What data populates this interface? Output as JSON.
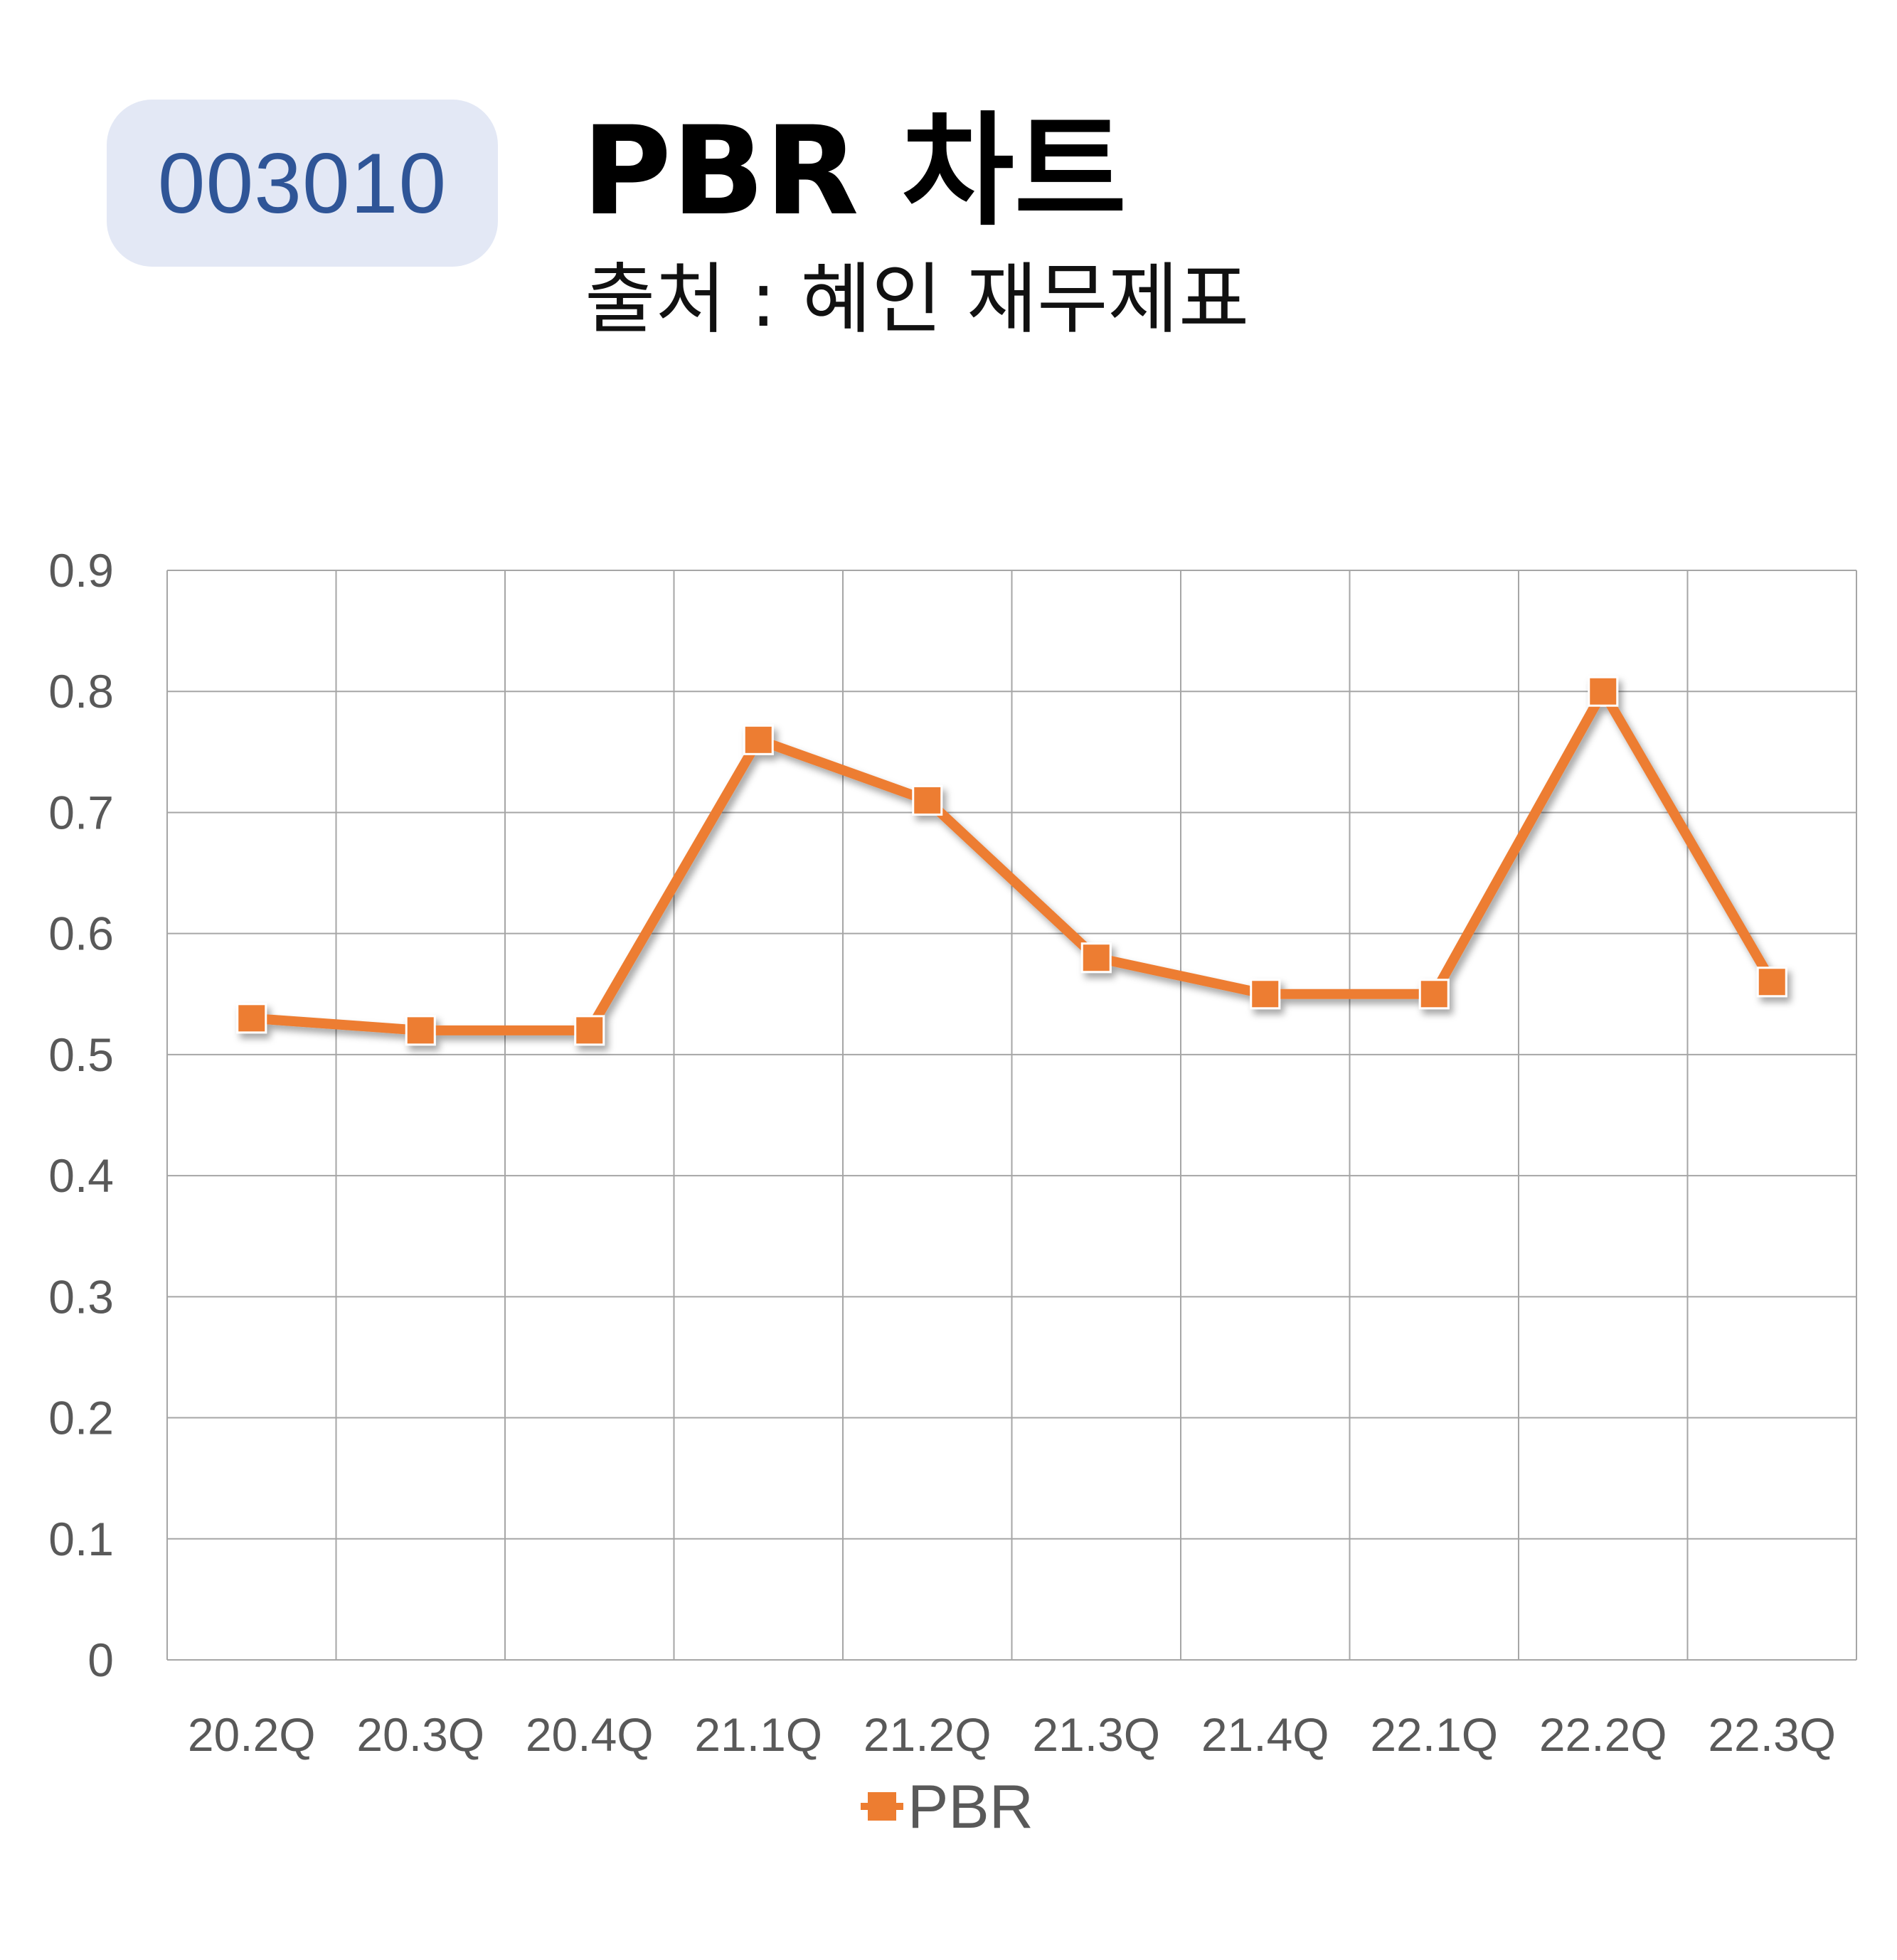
{
  "header": {
    "code": "003010",
    "title": "PBR 차트",
    "subtitle": "출처 : 혜인 재무제표"
  },
  "colors": {
    "badge_bg": "#e3e8f5",
    "badge_text": "#2f5597",
    "series": "#ed7d31",
    "grid": "#a6a6a6",
    "tick_text": "#595959"
  },
  "chart_data": {
    "type": "line",
    "categories": [
      "20.2Q",
      "20.3Q",
      "20.4Q",
      "21.1Q",
      "21.2Q",
      "21.3Q",
      "21.4Q",
      "22.1Q",
      "22.2Q",
      "22.3Q"
    ],
    "series": [
      {
        "name": "PBR",
        "values": [
          0.53,
          0.52,
          0.52,
          0.76,
          0.71,
          0.58,
          0.55,
          0.55,
          0.8,
          0.56
        ],
        "color": "#ed7d31",
        "marker": "square"
      }
    ],
    "yticks": [
      "0",
      "0.1",
      "0.2",
      "0.3",
      "0.4",
      "0.5",
      "0.6",
      "0.7",
      "0.8",
      "0.9"
    ],
    "ylim": [
      0,
      0.9
    ],
    "grid": true,
    "legend_position": "bottom"
  }
}
